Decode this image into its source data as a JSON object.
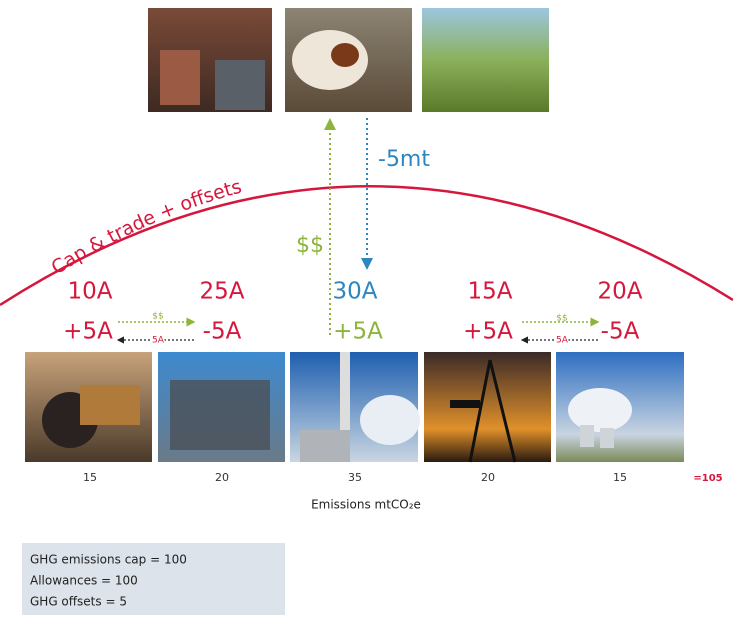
{
  "arc_label": "Cap & trade + offsets",
  "offset_flow": {
    "payment": "$$",
    "reduction": "-5mt"
  },
  "companies": [
    {
      "allowances": "10A",
      "adjustment": "+5A",
      "emissions": "15"
    },
    {
      "allowances": "25A",
      "adjustment": "-5A",
      "emissions": "20"
    },
    {
      "allowances": "30A",
      "adjustment": "+5A",
      "emissions": "35"
    },
    {
      "allowances": "15A",
      "adjustment": "+5A",
      "emissions": "20"
    },
    {
      "allowances": "20A",
      "adjustment": "-5A",
      "emissions": "15"
    }
  ],
  "trades": [
    {
      "payment": "$$",
      "allowances": "5A"
    },
    {
      "payment": "$$",
      "allowances": "5A"
    }
  ],
  "total": "=105",
  "x_axis_label": "Emissions mtCO₂e",
  "summary": [
    "GHG emissions cap = 100",
    "Allowances = 100",
    "GHG offsets = 5"
  ]
}
